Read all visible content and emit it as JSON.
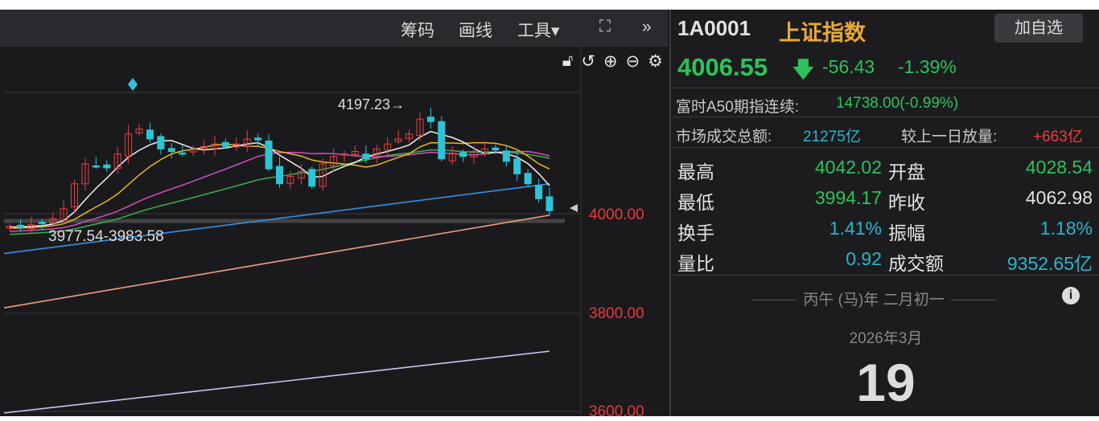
{
  "toolbar": {
    "items": [
      "筹码",
      "画线",
      "工具▾"
    ],
    "expand_icon": "expand-icon",
    "more_icon": "»"
  },
  "chart_tools": [
    "lock-icon",
    "undo-icon",
    "zoom-in-icon",
    "zoom-out-icon",
    "gear-icon"
  ],
  "chart": {
    "high_label": "4197.23→",
    "range_label": "3977.54-3983.58",
    "axis_labels": [
      "4000.00",
      "3800.00",
      "3600.00"
    ],
    "closes": [
      3975,
      3972,
      3978,
      3980,
      3990,
      4010,
      4060,
      4100,
      4095,
      4092,
      4120,
      4160,
      4170,
      4150,
      4130,
      4125,
      4120,
      4130,
      4135,
      4140,
      4135,
      4140,
      4150,
      4148,
      4090,
      4060,
      4075,
      4085,
      4055,
      4100,
      4115,
      4120,
      4125,
      4110,
      4130,
      4140,
      4150,
      4160,
      4190,
      4185,
      4110,
      4120,
      4115,
      4125,
      4130,
      4128,
      4105,
      4080,
      4060,
      4030,
      4006
    ],
    "colors": {
      "up": "#e84040",
      "down": "#2ec4d3",
      "ma5": "#f2f2f2",
      "ma10": "#e8b820",
      "ma20": "#d44fbf",
      "ma30": "#35b34a",
      "ma60": "#3a8fe0",
      "ma120": "#f0a080",
      "ma250": "#c9c6f0"
    },
    "long_ma": {
      "ma60": [
        3920,
        4060
      ],
      "ma120": [
        3811,
        3997
      ],
      "ma250": [
        3600,
        3724
      ]
    }
  },
  "quote": {
    "code": "1A0001",
    "name": "上证指数",
    "add_button": "加自选",
    "price": "4006.55",
    "arrow": "down-arrow-icon",
    "change": "-56.43",
    "pct": "-1.39%"
  },
  "a50": {
    "label": "富时A50期指连续:",
    "value": "14738.00(-0.99%)"
  },
  "market": {
    "label": "市场成交总额:",
    "value": "21275亿",
    "cmp_label": "较上一日放量:",
    "cmp_value": "+663亿"
  },
  "stats": [
    {
      "k1": "最高",
      "v1": "4042.02",
      "k2": "开盘",
      "v2": "4028.54",
      "c1": "g",
      "c2": "g"
    },
    {
      "k1": "最低",
      "v1": "3994.17",
      "k2": "昨收",
      "v2": "4062.98",
      "c1": "g",
      "c2": "w"
    },
    {
      "k1": "换手",
      "v1": "1.41%",
      "k2": "振幅",
      "v2": "1.18%",
      "c1": "c",
      "c2": "c"
    },
    {
      "k1": "量比",
      "v1": "0.92",
      "k2": "成交额",
      "v2": "9352.65亿",
      "c1": "c",
      "c2": "c"
    }
  ],
  "calendar": {
    "lunar": "丙午 (马)年 二月初一",
    "month": "2026年3月",
    "day": "19",
    "info_icon": "info-icon"
  }
}
